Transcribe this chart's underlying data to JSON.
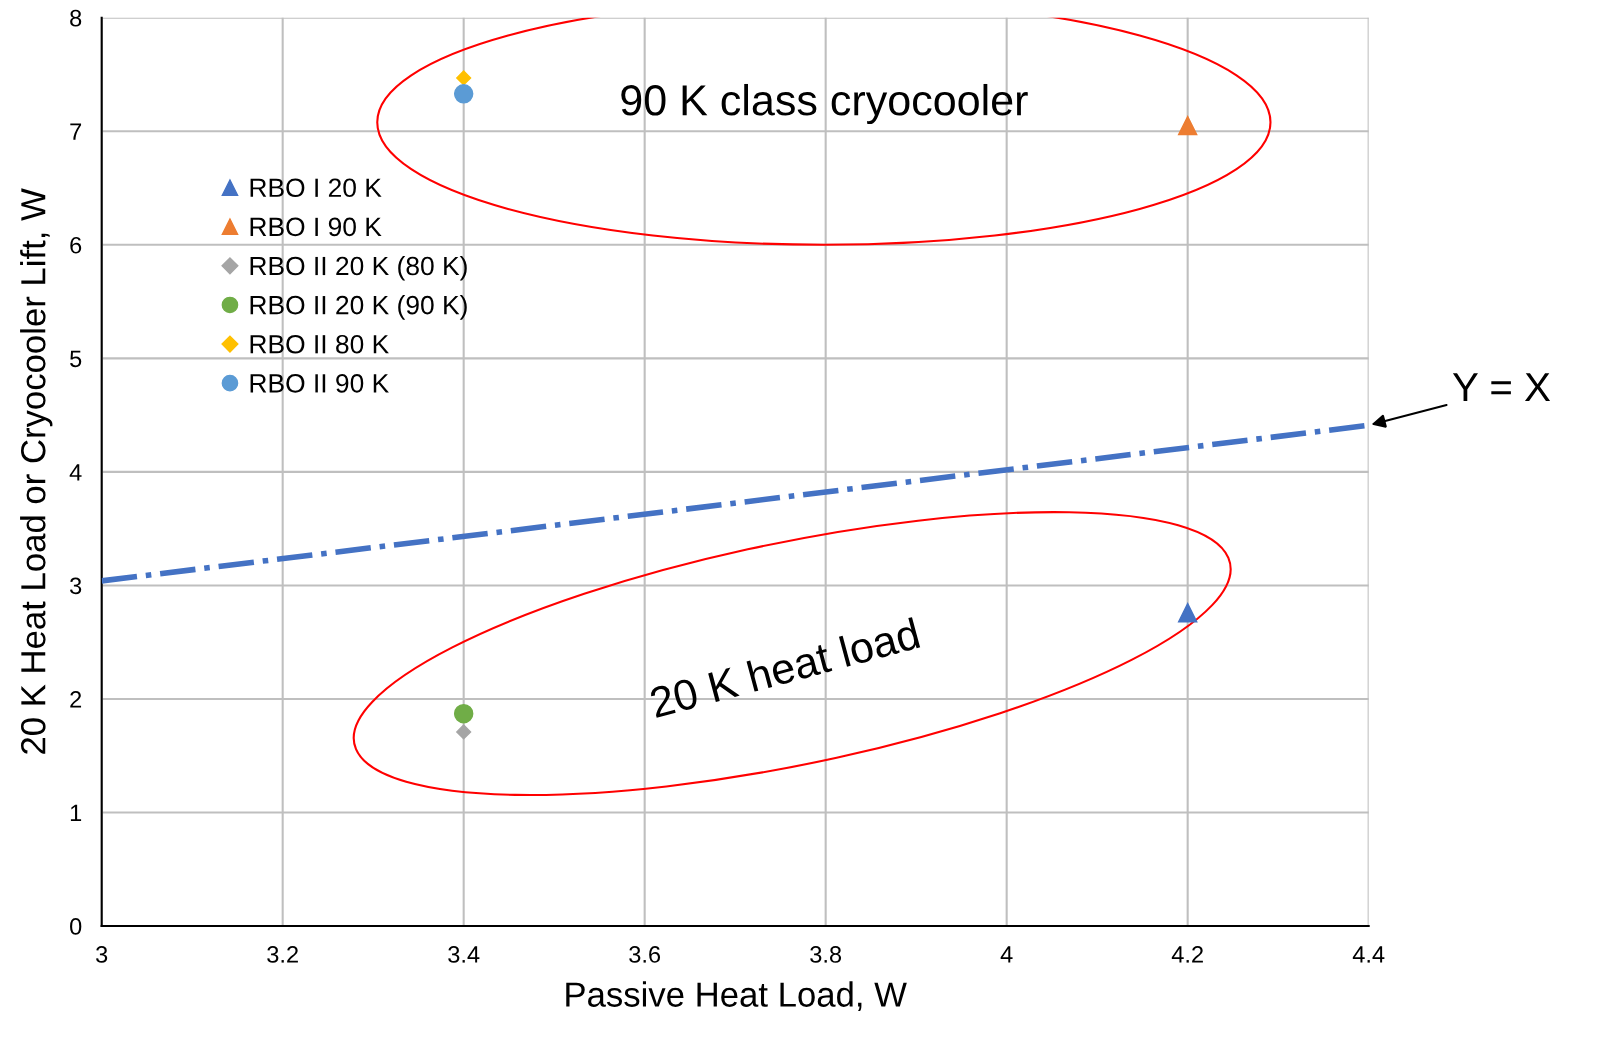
{
  "chart_data": {
    "type": "scatter",
    "xlabel": "Passive Heat Load, W",
    "ylabel": "20 K Heat Load or Cryocooler Lift, W",
    "xlim": [
      3,
      4.4
    ],
    "xticks": [
      3,
      3.2,
      3.4,
      3.6,
      3.8,
      4,
      4.2,
      4.4
    ],
    "ylim": [
      0,
      8
    ],
    "yticks": [
      0,
      1,
      2,
      3,
      4,
      5,
      6,
      7,
      8
    ],
    "grid": true,
    "legend": "top left",
    "series": [
      {
        "name": "RBO I 20 K",
        "color": "#4472c4",
        "marker": "triangle",
        "x": [
          4.2
        ],
        "values": [
          2.76
        ]
      },
      {
        "name": "RBO I 90 K",
        "color": "#ed7d31",
        "marker": "triangle",
        "x": [
          4.2
        ],
        "values": [
          7.05
        ]
      },
      {
        "name": "RBO II 20 K (80 K)",
        "color": "#a5a5a5",
        "marker": "diamond",
        "x": [
          3.4
        ],
        "values": [
          1.71
        ]
      },
      {
        "name": "RBO II 20 K (90 K)",
        "color": "#70ad47",
        "marker": "circle",
        "x": [
          3.4
        ],
        "values": [
          1.87
        ]
      },
      {
        "name": "RBO II 80 K",
        "color": "#ffc000",
        "marker": "diamond",
        "x": [
          3.4
        ],
        "values": [
          7.47
        ]
      },
      {
        "name": "RBO II 90 K",
        "color": "#5b9bd5",
        "marker": "circle",
        "x": [
          3.4
        ],
        "values": [
          7.33
        ]
      },
      {
        "type": "line",
        "color": "#4472c4",
        "line_style": "dashdot",
        "marker": "none",
        "x": [
          3,
          4.4
        ],
        "values": [
          3.04,
          4.41
        ]
      }
    ],
    "annotations": [
      "90 K class cryocooler",
      "20 K heat load",
      {
        "text": "Y = X",
        "x": 4.4,
        "y": 4.41
      }
    ]
  }
}
